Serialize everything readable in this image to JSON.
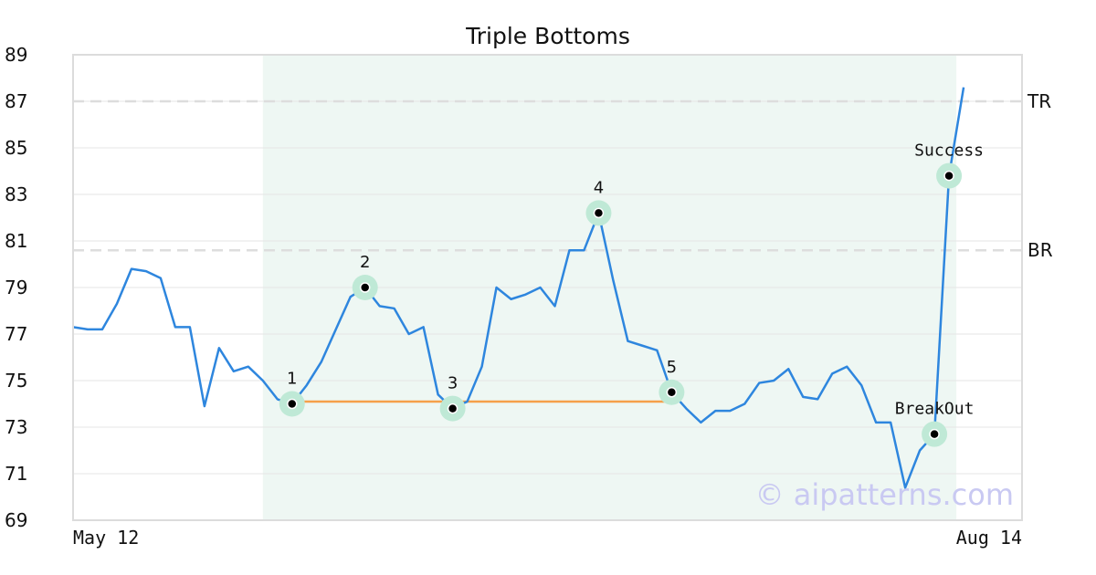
{
  "watermark": "© aipatterns.com",
  "colors": {
    "line": "#2e86de",
    "support": "#f5a04a",
    "shade": "#eef7f3",
    "marker_halo": "#bfe9d6",
    "reference": "#dddddd"
  },
  "chart_data": {
    "type": "line",
    "title": "Triple Bottoms",
    "xlabel": "",
    "ylabel": "",
    "ylim": [
      69,
      89
    ],
    "yticks": [
      69,
      71,
      73,
      75,
      77,
      79,
      81,
      83,
      85,
      87,
      89
    ],
    "x_tick_labels": [
      "May 12",
      "Aug 14"
    ],
    "x_range": [
      0,
      65
    ],
    "grid": true,
    "series": [
      {
        "values": [
          77.3,
          77.2,
          77.2,
          78.3,
          79.8,
          79.7,
          79.4,
          77.3,
          77.3,
          73.9,
          76.4,
          75.4,
          75.6,
          75.0,
          74.2,
          74.0,
          74.8,
          75.8,
          77.2,
          78.6,
          79.0,
          78.2,
          78.1,
          77.0,
          77.3,
          74.4,
          73.8,
          74.1,
          75.6,
          79.0,
          78.5,
          78.7,
          79.0,
          78.2,
          80.6,
          80.6,
          82.2,
          79.3,
          76.7,
          76.5,
          76.3,
          74.5,
          73.8,
          73.2,
          73.7,
          73.7,
          74.0,
          74.9,
          75.0,
          75.5,
          74.3,
          74.2,
          75.3,
          75.6,
          74.8,
          73.2,
          73.2,
          70.4,
          72.0,
          72.7,
          83.8,
          87.6
        ]
      }
    ],
    "shaded_x_range": [
      13,
      60.5
    ],
    "support_line": {
      "x": [
        15,
        41
      ],
      "y": 74.1
    },
    "reference_lines": [
      {
        "label": "TR",
        "y": 87.0
      },
      {
        "label": "BR",
        "y": 80.6
      }
    ],
    "points": [
      {
        "label": "1",
        "x": 15,
        "y": 74.0
      },
      {
        "label": "2",
        "x": 20,
        "y": 79.0
      },
      {
        "label": "3",
        "x": 26,
        "y": 73.8
      },
      {
        "label": "4",
        "x": 36,
        "y": 82.2
      },
      {
        "label": "5",
        "x": 41,
        "y": 74.5
      }
    ],
    "events": [
      {
        "label": "BreakOut",
        "x": 59,
        "y": 72.7
      },
      {
        "label": "Success",
        "x": 60,
        "y": 83.8
      }
    ]
  }
}
